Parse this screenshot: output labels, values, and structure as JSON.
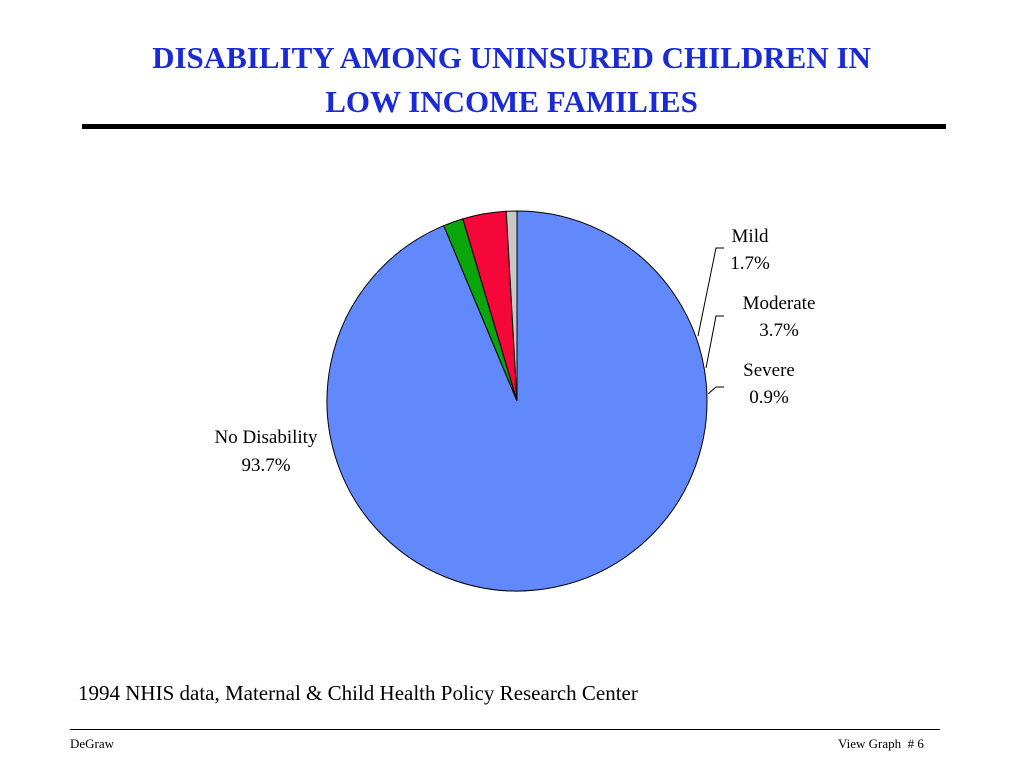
{
  "title": {
    "line1": "DISABILITY AMONG UNINSURED CHILDREN IN",
    "line2": "LOW INCOME FAMILIES"
  },
  "chart_data": {
    "type": "pie",
    "start_angle_deg": 90,
    "direction": "clockwise",
    "slices": [
      {
        "label": "No Disability",
        "value": 93.7,
        "value_label": "93.7%",
        "color": "#6189fb"
      },
      {
        "label": "Mild",
        "value": 1.7,
        "value_label": "1.7%",
        "color": "#0aa50a"
      },
      {
        "label": "Moderate",
        "value": 3.7,
        "value_label": "3.7%",
        "color": "#f5073a"
      },
      {
        "label": "Severe",
        "value": 0.9,
        "value_label": "0.9%",
        "color": "#c8c8c8"
      }
    ]
  },
  "source": "1994 NHIS data, Maternal & Child Health Policy Research Center",
  "footer": {
    "left": "DeGraw",
    "right": "View Graph  # 6"
  }
}
